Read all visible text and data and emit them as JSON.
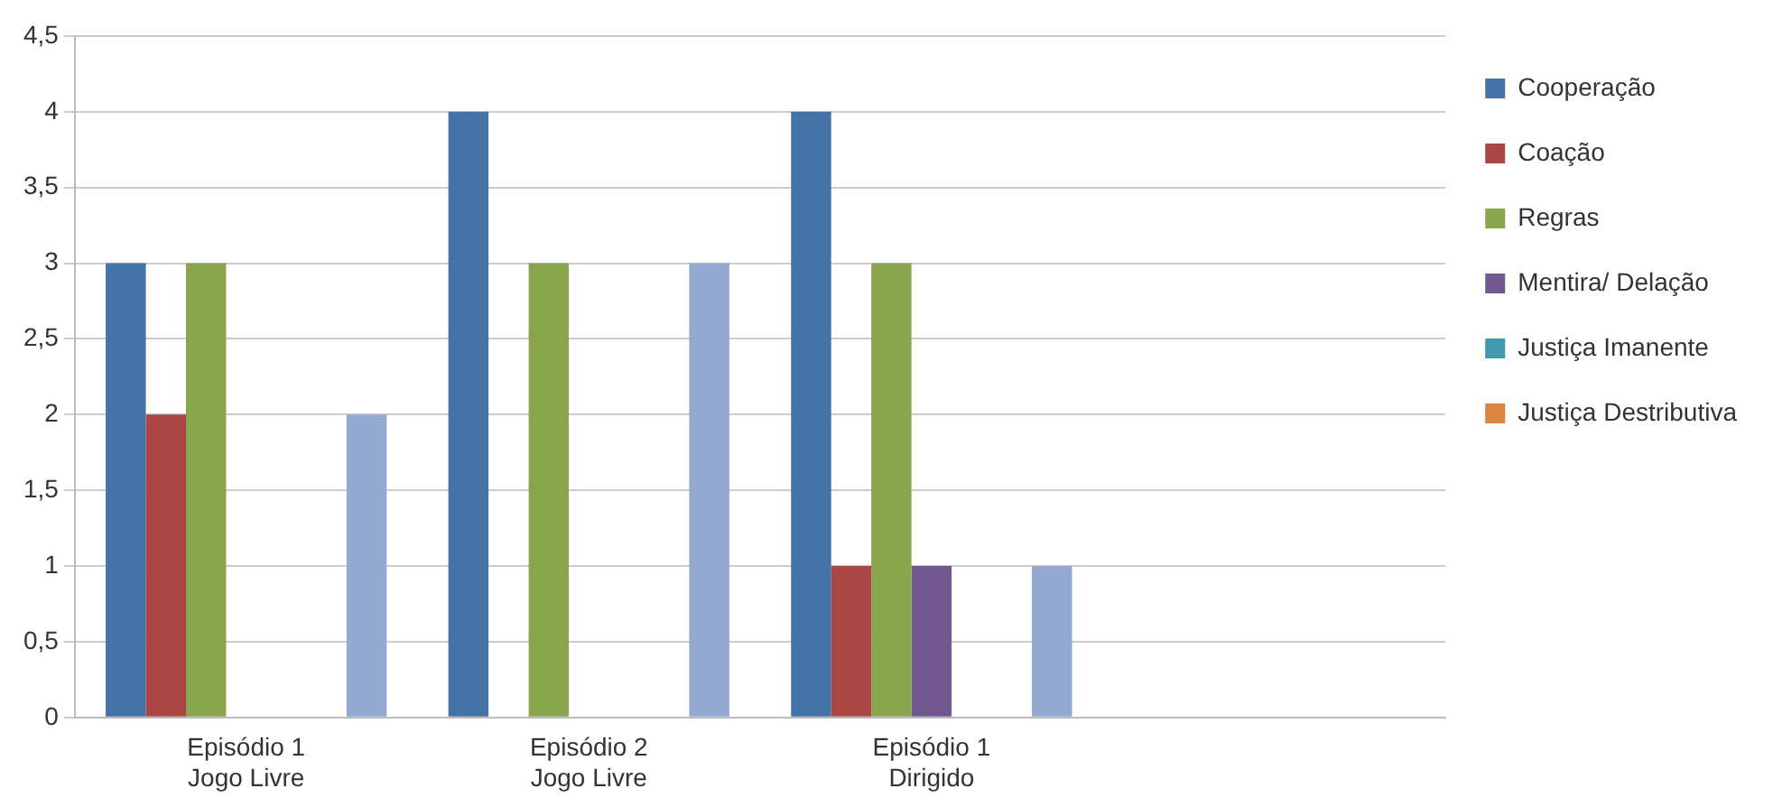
{
  "chart_data": {
    "type": "bar",
    "categories": [
      "Episódio 1 Jogo Livre",
      "Episódio 2 Jogo Livre",
      "Episódio 1 Dirigido",
      null
    ],
    "series": [
      {
        "name": "Cooperação",
        "color": "#4572a7",
        "values": [
          3,
          4,
          4,
          null
        ]
      },
      {
        "name": "Coação",
        "color": "#aa4643",
        "values": [
          2,
          0,
          1,
          null
        ]
      },
      {
        "name": "Regras",
        "color": "#89a54e",
        "values": [
          3,
          3,
          3,
          null
        ]
      },
      {
        "name": "Mentira/ Delação",
        "color": "#71588f",
        "values": [
          0,
          0,
          1,
          null
        ]
      },
      {
        "name": "Justiça Imanente",
        "color": "#4198af",
        "values": [
          0,
          0,
          0,
          null
        ]
      },
      {
        "name": "Justiça Destributiva",
        "color": "#db843d",
        "values": [
          0,
          0,
          0,
          null
        ]
      },
      {
        "color": "#93a9cf",
        "values": [
          2,
          3,
          1,
          null
        ]
      }
    ],
    "ylim": [
      0,
      4.5
    ],
    "yticks": [
      0,
      {
        "value": 0.5,
        "label": "0,5"
      },
      1,
      {
        "value": 1.5,
        "label": "1,5"
      },
      2,
      {
        "value": 2.5,
        "label": "2,5"
      },
      3,
      {
        "value": 3.5,
        "label": "3,5"
      },
      4,
      {
        "value": 4.5,
        "label": "4,5"
      }
    ],
    "grid": "y",
    "legend": "right"
  }
}
